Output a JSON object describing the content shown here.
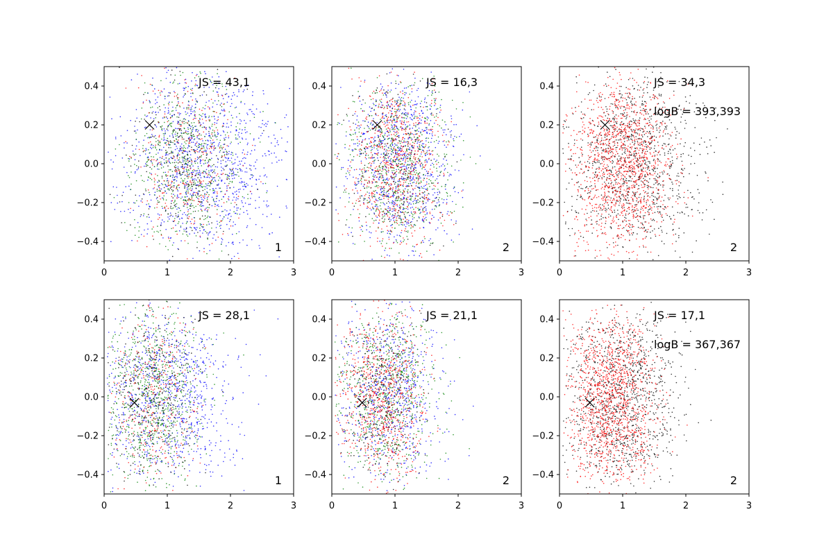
{
  "chart_data": [
    {
      "type": "scatter",
      "panel_label": "1",
      "annotations": [
        "JS = 43,1"
      ],
      "xlim": [
        0,
        3
      ],
      "ylim": [
        -0.5,
        0.5
      ],
      "xticks": [
        "0",
        "1",
        "2",
        "3"
      ],
      "yticks": [
        "−0.4",
        "−0.2",
        "0.0",
        "0.2",
        "0.4"
      ],
      "marker": {
        "x": 0.72,
        "y": 0.2
      },
      "series": [
        {
          "name": "blue",
          "color": "#0000ff",
          "count": 1100,
          "cx": 1.55,
          "sx": 0.62,
          "sy": 0.22
        },
        {
          "name": "green",
          "color": "#008000",
          "count": 650,
          "cx": 1.3,
          "sx": 0.42,
          "sy": 0.2
        },
        {
          "name": "red",
          "color": "#ff0000",
          "count": 320,
          "cx": 1.3,
          "sx": 0.42,
          "sy": 0.2
        },
        {
          "name": "black",
          "color": "#000000",
          "count": 260,
          "cx": 1.3,
          "sx": 0.42,
          "sy": 0.2
        }
      ]
    },
    {
      "type": "scatter",
      "panel_label": "2",
      "annotations": [
        "JS = 16,3"
      ],
      "xlim": [
        0,
        3
      ],
      "ylim": [
        -0.5,
        0.5
      ],
      "xticks": [
        "0",
        "1",
        "2",
        "3"
      ],
      "yticks": [
        "−0.4",
        "−0.2",
        "0.0",
        "0.2",
        "0.4"
      ],
      "marker": {
        "x": 0.72,
        "y": 0.2
      },
      "series": [
        {
          "name": "blue",
          "color": "#0000ff",
          "count": 900,
          "cx": 1.1,
          "sx": 0.42,
          "sy": 0.2
        },
        {
          "name": "green",
          "color": "#008000",
          "count": 700,
          "cx": 1.05,
          "sx": 0.42,
          "sy": 0.2
        },
        {
          "name": "red",
          "color": "#ff0000",
          "count": 700,
          "cx": 1.0,
          "sx": 0.38,
          "sy": 0.2
        },
        {
          "name": "black",
          "color": "#000000",
          "count": 220,
          "cx": 1.0,
          "sx": 0.38,
          "sy": 0.2
        }
      ]
    },
    {
      "type": "scatter",
      "panel_label": "2",
      "annotations": [
        "JS = 34,3",
        "logB = 393,393"
      ],
      "xlim": [
        0,
        3
      ],
      "ylim": [
        -0.5,
        0.5
      ],
      "xticks": [
        "0",
        "1",
        "2",
        "3"
      ],
      "yticks": [
        "−0.4",
        "−0.2",
        "0.0",
        "0.2",
        "0.4"
      ],
      "marker": {
        "x": 0.72,
        "y": 0.2
      },
      "series": [
        {
          "name": "black",
          "color": "#000000",
          "count": 1100,
          "cx": 1.2,
          "sx": 0.52,
          "sy": 0.2
        },
        {
          "name": "red",
          "color": "#ff0000",
          "count": 1300,
          "cx": 1.0,
          "sx": 0.38,
          "sy": 0.2
        }
      ]
    },
    {
      "type": "scatter",
      "panel_label": "1",
      "annotations": [
        "JS = 28,1"
      ],
      "xlim": [
        0,
        3
      ],
      "ylim": [
        -0.5,
        0.5
      ],
      "xticks": [
        "0",
        "1",
        "2",
        "3"
      ],
      "yticks": [
        "−0.4",
        "−0.2",
        "0.0",
        "0.2",
        "0.4"
      ],
      "marker": {
        "x": 0.48,
        "y": -0.03
      },
      "series": [
        {
          "name": "blue",
          "color": "#0000ff",
          "count": 900,
          "cx": 1.0,
          "sx": 0.52,
          "sy": 0.21
        },
        {
          "name": "green",
          "color": "#008000",
          "count": 750,
          "cx": 0.8,
          "sx": 0.36,
          "sy": 0.2
        },
        {
          "name": "red",
          "color": "#ff0000",
          "count": 320,
          "cx": 0.8,
          "sx": 0.36,
          "sy": 0.2
        },
        {
          "name": "black",
          "color": "#000000",
          "count": 320,
          "cx": 0.8,
          "sx": 0.36,
          "sy": 0.2
        }
      ]
    },
    {
      "type": "scatter",
      "panel_label": "2",
      "annotations": [
        "JS = 21,1"
      ],
      "xlim": [
        0,
        3
      ],
      "ylim": [
        -0.5,
        0.5
      ],
      "xticks": [
        "0",
        "1",
        "2",
        "3"
      ],
      "yticks": [
        "−0.4",
        "−0.2",
        "0.0",
        "0.2",
        "0.4"
      ],
      "marker": {
        "x": 0.48,
        "y": -0.03
      },
      "series": [
        {
          "name": "blue",
          "color": "#0000ff",
          "count": 700,
          "cx": 0.95,
          "sx": 0.4,
          "sy": 0.2
        },
        {
          "name": "green",
          "color": "#008000",
          "count": 700,
          "cx": 0.9,
          "sx": 0.38,
          "sy": 0.2
        },
        {
          "name": "red",
          "color": "#ff0000",
          "count": 750,
          "cx": 0.8,
          "sx": 0.33,
          "sy": 0.2
        },
        {
          "name": "black",
          "color": "#000000",
          "count": 260,
          "cx": 0.8,
          "sx": 0.33,
          "sy": 0.2
        }
      ]
    },
    {
      "type": "scatter",
      "panel_label": "2",
      "annotations": [
        "JS = 17,1",
        "logB = 367,367"
      ],
      "xlim": [
        0,
        3
      ],
      "ylim": [
        -0.5,
        0.5
      ],
      "xticks": [
        "0",
        "1",
        "2",
        "3"
      ],
      "yticks": [
        "−0.4",
        "−0.2",
        "0.0",
        "0.2",
        "0.4"
      ],
      "marker": {
        "x": 0.48,
        "y": -0.03
      },
      "series": [
        {
          "name": "black",
          "color": "#000000",
          "count": 1100,
          "cx": 1.0,
          "sx": 0.45,
          "sy": 0.2
        },
        {
          "name": "red",
          "color": "#ff0000",
          "count": 1300,
          "cx": 0.8,
          "sx": 0.33,
          "sy": 0.2
        }
      ]
    }
  ]
}
